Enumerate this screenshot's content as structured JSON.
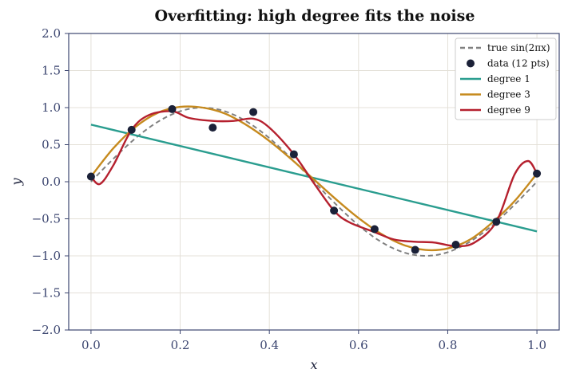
{
  "chart_data": {
    "type": "line",
    "title": "Overfitting: high degree fits the noise",
    "xlabel": "x",
    "ylabel": "y",
    "xlim": [
      -0.05,
      1.05
    ],
    "ylim": [
      -2.0,
      2.0
    ],
    "x_ticks": [
      "0.0",
      "0.2",
      "0.4",
      "0.6",
      "0.8",
      "1.0"
    ],
    "y_ticks": [
      "−2.0",
      "−1.5",
      "−1.0",
      "−0.5",
      "0.0",
      "0.5",
      "1.0",
      "1.5",
      "2.0"
    ],
    "grid": true,
    "legend_position": "top-right",
    "legend": [
      "true sin(2πx)",
      "data (12 pts)",
      "degree 1",
      "degree 3",
      "degree 9"
    ],
    "colors": {
      "true": "#808080",
      "data": "#1b2138",
      "degree1": "#2a9d8f",
      "degree3": "#c68a1e",
      "degree9": "#b5202e"
    },
    "data_points": {
      "x": [
        0.0,
        0.091,
        0.182,
        0.273,
        0.364,
        0.455,
        0.545,
        0.636,
        0.727,
        0.818,
        0.909,
        1.0
      ],
      "y": [
        0.07,
        0.7,
        0.98,
        0.73,
        0.94,
        0.37,
        -0.39,
        -0.64,
        -0.92,
        -0.85,
        -0.54,
        0.11
      ]
    },
    "series": [
      {
        "name": "degree 1",
        "x": [
          0.0,
          1.0
        ],
        "y": [
          0.77,
          -0.67
        ]
      },
      {
        "name": "degree 3",
        "x": [
          0.0,
          0.05,
          0.1,
          0.15,
          0.2,
          0.25,
          0.3,
          0.35,
          0.4,
          0.45,
          0.5,
          0.55,
          0.6,
          0.65,
          0.7,
          0.75,
          0.8,
          0.85,
          0.9,
          0.95,
          1.0
        ],
        "y": [
          0.07,
          0.45,
          0.74,
          0.93,
          1.01,
          1.0,
          0.92,
          0.76,
          0.55,
          0.3,
          0.03,
          -0.24,
          -0.49,
          -0.7,
          -0.85,
          -0.92,
          -0.9,
          -0.78,
          -0.55,
          -0.26,
          0.11
        ]
      },
      {
        "name": "degree 9",
        "x": [
          0.0,
          0.02,
          0.05,
          0.091,
          0.13,
          0.182,
          0.22,
          0.273,
          0.32,
          0.364,
          0.4,
          0.455,
          0.5,
          0.545,
          0.58,
          0.636,
          0.68,
          0.727,
          0.77,
          0.818,
          0.86,
          0.909,
          0.95,
          0.98,
          1.0
        ],
        "y": [
          0.07,
          -0.03,
          0.22,
          0.7,
          0.9,
          0.95,
          0.86,
          0.82,
          0.82,
          0.85,
          0.73,
          0.37,
          -0.02,
          -0.39,
          -0.55,
          -0.68,
          -0.78,
          -0.81,
          -0.82,
          -0.87,
          -0.82,
          -0.54,
          0.1,
          0.28,
          0.11
        ]
      }
    ]
  }
}
